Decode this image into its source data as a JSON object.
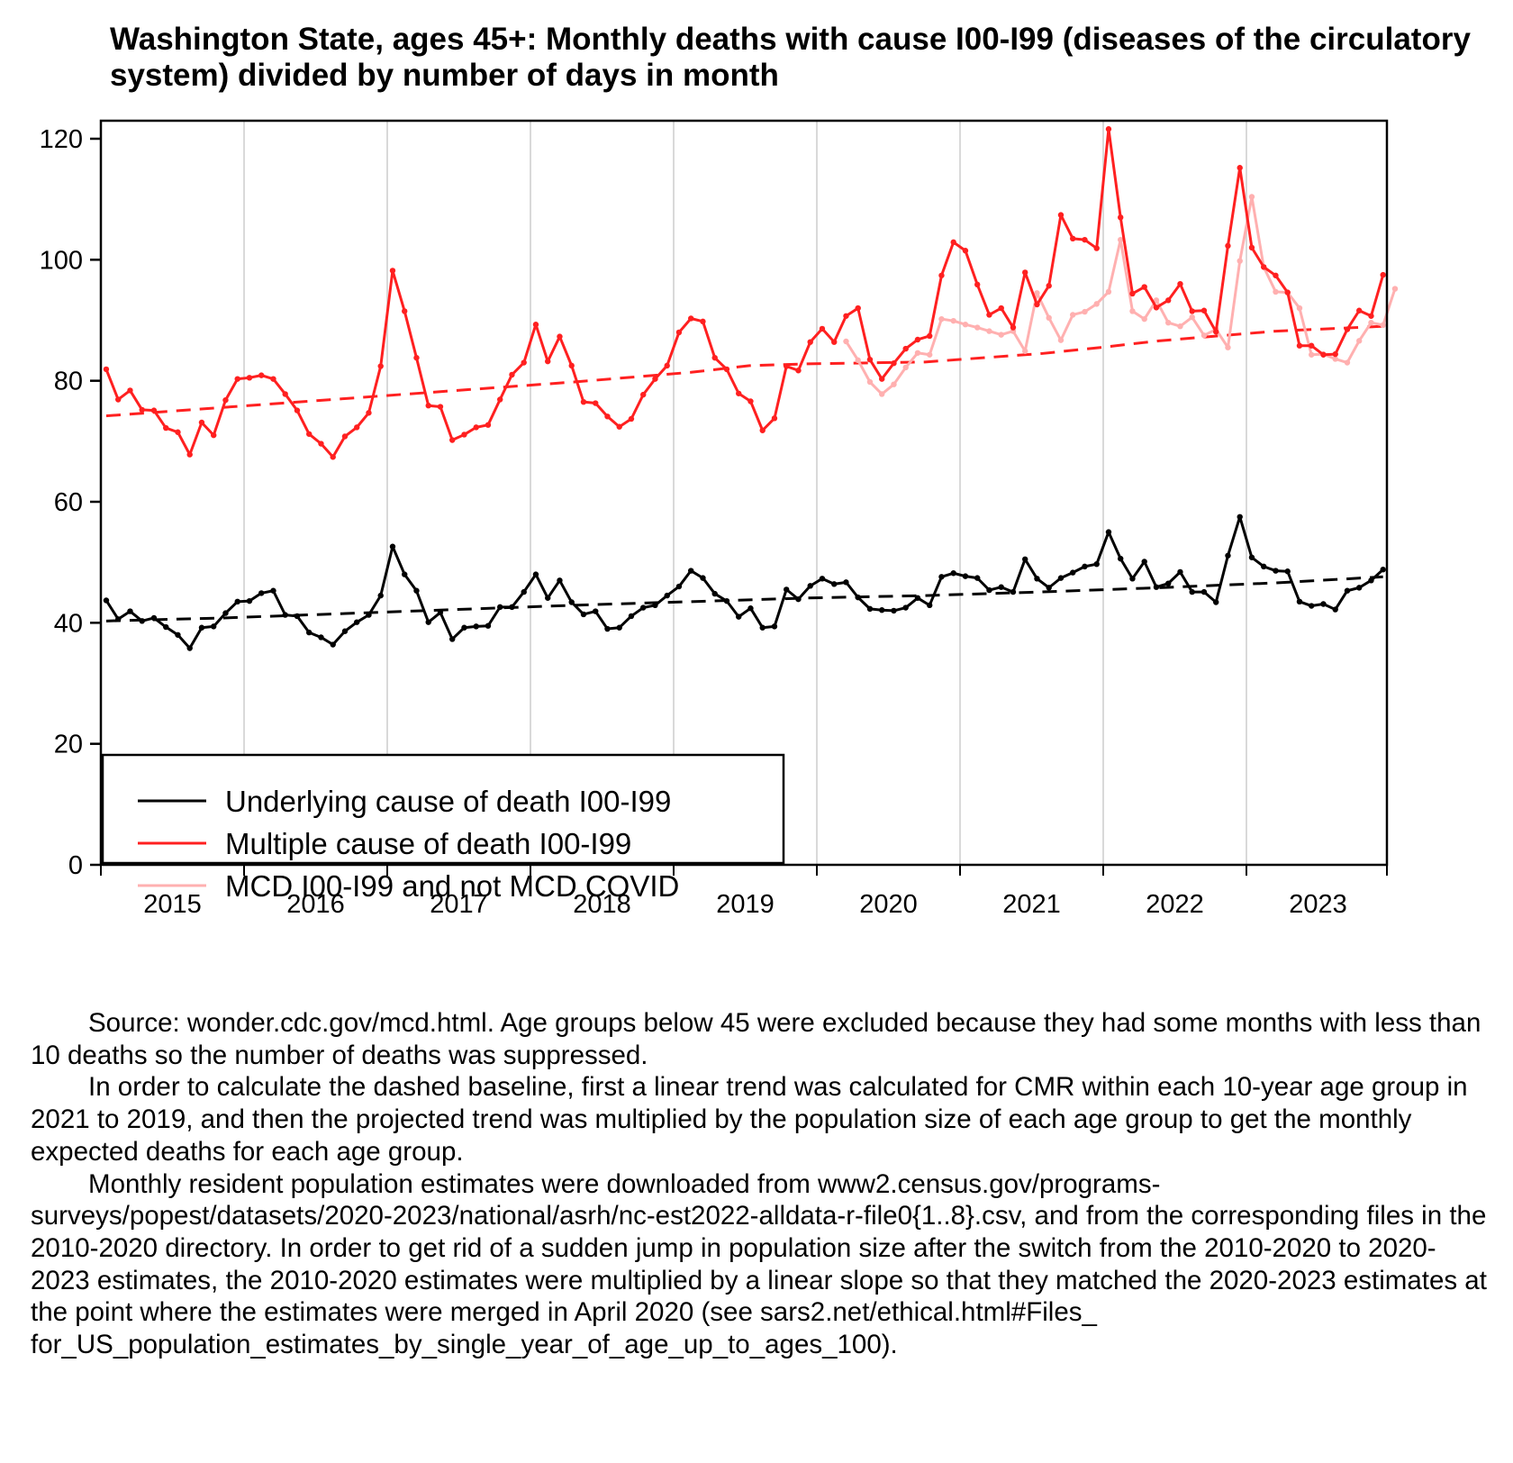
{
  "chart_data": {
    "type": "line",
    "title": "Washington State, ages 45+: Monthly deaths with cause I00-I99 (diseases of the circulatory system) divided by number of days in month",
    "xlabel": "",
    "ylabel": "",
    "ylim": [
      0,
      124
    ],
    "yticks": [
      0,
      20,
      40,
      60,
      80,
      100,
      120
    ],
    "x_start": "2015-01",
    "x_end": "2023-12",
    "xtick_labels": [
      "2015",
      "2016",
      "2017",
      "2018",
      "2019",
      "2020",
      "2021",
      "2022",
      "2023"
    ],
    "grid": "vertical lines at year boundaries",
    "legend_position": "bottom-left",
    "series": [
      {
        "name": "Underlying cause of death I00-I99",
        "color": "#000000",
        "style": "solid-with-points",
        "start": "2015-01",
        "values": [
          43.7,
          40.6,
          41.9,
          40.3,
          40.8,
          39.3,
          38.0,
          35.8,
          39.2,
          39.4,
          41.6,
          43.5,
          43.6,
          44.9,
          45.3,
          41.3,
          41.1,
          38.4,
          37.6,
          36.4,
          38.6,
          40.1,
          41.3,
          44.5,
          52.6,
          48.0,
          45.3,
          40.1,
          41.7,
          37.3,
          39.2,
          39.4,
          39.5,
          42.6,
          42.6,
          45.1,
          48.0,
          44.1,
          47.0,
          43.4,
          41.4,
          41.9,
          39.0,
          39.2,
          41.1,
          42.5,
          42.9,
          44.5,
          46.0,
          48.6,
          47.4,
          44.8,
          43.6,
          41.0,
          42.4,
          39.2,
          39.4,
          45.5,
          43.9,
          46.1,
          47.3,
          46.4,
          46.7,
          44.2,
          42.3,
          42.1,
          42.0,
          42.5,
          44.1,
          42.9,
          47.6,
          48.2,
          47.7,
          47.4,
          45.4,
          45.9,
          45.1,
          50.5,
          47.3,
          45.8,
          47.4,
          48.3,
          49.3,
          49.7,
          55.0,
          50.6,
          47.3,
          50.1,
          45.9,
          46.5,
          48.4,
          45.1,
          45.1,
          43.4,
          51.1,
          57.5,
          50.8,
          49.3,
          48.6,
          48.5,
          43.5,
          42.8,
          43.1,
          42.2,
          45.3,
          45.8,
          47.0,
          48.8
        ]
      },
      {
        "name": "Multiple cause of death I00-I99",
        "color": "#ff2020",
        "style": "solid-with-points",
        "start": "2015-01",
        "values": [
          81.9,
          76.9,
          78.4,
          75.2,
          75.1,
          72.2,
          71.5,
          67.8,
          73.1,
          71.0,
          76.8,
          80.3,
          80.5,
          80.9,
          80.3,
          77.8,
          75.1,
          71.2,
          69.6,
          67.4,
          70.8,
          72.3,
          74.7,
          82.4,
          98.2,
          91.5,
          83.8,
          75.9,
          75.7,
          70.2,
          71.1,
          72.3,
          72.7,
          76.9,
          81.0,
          83.0,
          89.3,
          83.2,
          87.3,
          82.5,
          76.5,
          76.3,
          74.1,
          72.4,
          73.7,
          77.7,
          80.3,
          82.5,
          88.0,
          90.3,
          89.8,
          83.8,
          81.9,
          77.9,
          76.6,
          71.8,
          73.8,
          82.4,
          81.7,
          86.4,
          88.6,
          86.4,
          90.7,
          92.0,
          83.5,
          80.3,
          82.9,
          85.3,
          86.8,
          87.4,
          97.4,
          102.9,
          101.5,
          95.9,
          90.9,
          92.0,
          88.8,
          97.9,
          92.6,
          95.7,
          107.4,
          103.5,
          103.3,
          101.9,
          121.6,
          107.0,
          94.4,
          95.5,
          92.1,
          93.3,
          96.0,
          91.5,
          91.6,
          88.1,
          102.3,
          115.2,
          102.0,
          98.8,
          97.4,
          94.6,
          85.8,
          85.8,
          84.3,
          84.4,
          88.5,
          91.6,
          90.7,
          97.5
        ]
      },
      {
        "name": "MCD I00-I99 and not MCD COVID",
        "color": "#ffb0b0",
        "style": "solid-with-points",
        "start": "2020-03",
        "values": [
          86.5,
          83.4,
          79.8,
          77.8,
          79.4,
          82.2,
          84.6,
          84.3,
          90.2,
          89.9,
          89.3,
          88.8,
          88.2,
          87.6,
          88.2,
          84.9,
          94.5,
          90.4,
          86.7,
          90.9,
          91.4,
          92.7,
          94.7,
          103.3,
          91.5,
          90.2,
          93.3,
          89.6,
          89.0,
          90.5,
          87.5,
          88.5,
          85.5,
          99.8,
          110.4,
          98.8,
          94.7,
          94.6,
          92.0,
          84.3,
          84.4,
          83.6,
          83.0,
          86.6,
          89.6,
          89.2,
          95.2
        ]
      },
      {
        "name": "Baseline (MCD)",
        "color": "#ff2020",
        "style": "dashed",
        "start": "2015-01",
        "points": [
          [
            0,
            74.2
          ],
          [
            12,
            75.6
          ],
          [
            24,
            77.0
          ],
          [
            36,
            78.4
          ],
          [
            48,
            79.8
          ],
          [
            60,
            81.4
          ],
          [
            66,
            82.5
          ],
          [
            72,
            82.8
          ],
          [
            84,
            83.1
          ],
          [
            96,
            84.5
          ],
          [
            102,
            85.5
          ],
          [
            108,
            86.6
          ],
          [
            120,
            88.2
          ],
          [
            131,
            89.0
          ]
        ]
      },
      {
        "name": "Baseline (UCD)",
        "color": "#000000",
        "style": "dashed",
        "start": "2015-01",
        "points": [
          [
            0,
            40.3
          ],
          [
            12,
            40.8
          ],
          [
            24,
            41.5
          ],
          [
            36,
            42.2
          ],
          [
            48,
            42.9
          ],
          [
            60,
            43.5
          ],
          [
            72,
            44.1
          ],
          [
            84,
            44.5
          ],
          [
            96,
            45.1
          ],
          [
            108,
            45.8
          ],
          [
            120,
            46.6
          ],
          [
            131,
            47.6
          ]
        ]
      }
    ]
  },
  "title": "Washington State, ages 45+: Monthly deaths with cause I00-I99 (diseases of the circulatory system) divided by number of days in month",
  "legend": [
    {
      "label": "Underlying cause of death I00-I99",
      "color": "#000000"
    },
    {
      "label": "Multiple cause of death I00-I99",
      "color": "#ff2020"
    },
    {
      "label": "MCD I00-I99 and not MCD COVID",
      "color": "#ffb0b0"
    }
  ],
  "notes": [
    "Source: wonder.cdc.gov/mcd.html. Age groups below 45 were excluded because they had some months with less than 10 deaths so the number of deaths was suppressed.",
    "In order to calculate the dashed baseline, first a linear trend was calculated for CMR within each 10-year age group in 2021 to 2019, and then the projected trend was multiplied by the population size of each age group to get the monthly expected deaths for each age group.",
    "Monthly resident population estimates were downloaded from www2.census.gov/programs-surveys/popest/datasets/2020-2023/national/asrh/nc-est2022-alldata-r-file0{1..8}.csv, and from the corresponding files in the 2010-2020 directory. In order to get rid of a sudden jump in population size after the switch from the 2010-2020 to 2020-2023 estimates, the 2010-2020 estimates were multiplied by a linear slope so that they matched the 2020-2023 estimates at the point where the estimates were merged in April 2020 (see sars2.net/ethical.html#Files_ for_US_population_estimates_by_single_year_of_age_up_to_ages_100)."
  ]
}
